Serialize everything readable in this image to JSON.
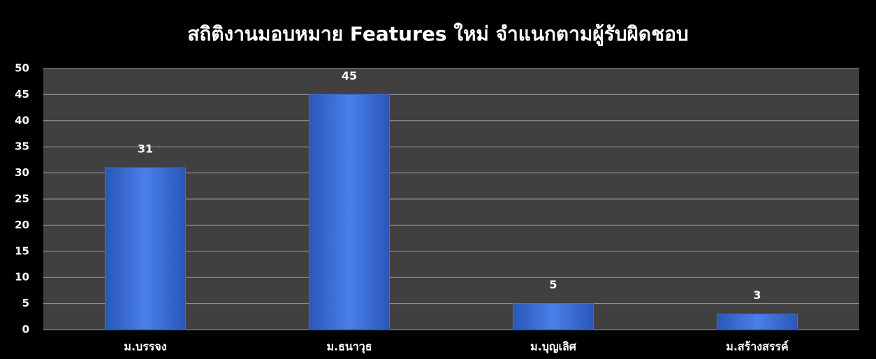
{
  "chart_data": {
    "type": "bar",
    "title": "สถิติงานมอบหมาย  Features ใหม่ จำแนกตามผู้รับผิดชอบ",
    "categories": [
      "ม.บรรจง",
      "ม.ธนาวุธ",
      "ม.บุญเลิศ",
      "ม.สร้างสรรค์"
    ],
    "values": [
      31,
      45,
      5,
      3
    ],
    "color": "#3a6fd8",
    "ylim": [
      0,
      50
    ],
    "yticks": [
      0,
      5,
      10,
      15,
      20,
      25,
      30,
      35,
      40,
      45,
      50
    ],
    "grid": true
  }
}
